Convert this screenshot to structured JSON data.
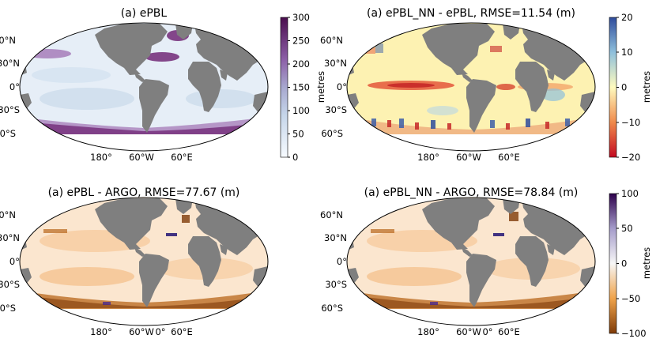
{
  "panels": [
    {
      "title": "(a) ePBL",
      "lat_labels": [
        "60°N",
        "30°N",
        "0°",
        "30°S",
        "60°S"
      ],
      "lon_labels": [
        "180°",
        "60°W",
        "60°E"
      ],
      "field": "sequential_purple"
    },
    {
      "title": "(a) ePBL_NN - ePBL, RMSE=11.54 (m)",
      "lat_labels": [
        "60°N",
        "30°N",
        "0°",
        "30°S",
        "60°S"
      ],
      "lon_labels": [
        "180°",
        "60°W",
        "60°E"
      ],
      "field": "diverging_rdylbu"
    },
    {
      "title": "(a) ePBL - ARGO, RMSE=77.67 (m)",
      "lat_labels": [
        "60°N",
        "30°N",
        "0°",
        "30°S",
        "60°S"
      ],
      "lon_labels": [
        "180°",
        "60°W",
        "0°",
        "60°E"
      ],
      "field": "diverging_puor"
    },
    {
      "title": "(a) ePBL_NN - ARGO, RMSE=78.84 (m)",
      "lat_labels": [
        "60°N",
        "30°N",
        "0°",
        "30°S",
        "60°S"
      ],
      "lon_labels": [
        "180°",
        "60°W",
        "0°",
        "60°E"
      ],
      "field": "diverging_puor"
    }
  ],
  "colorbars": [
    {
      "label": "metres",
      "ticks": [
        "300",
        "250",
        "200",
        "150",
        "100",
        "50",
        "0"
      ],
      "range": [
        0,
        300
      ],
      "colormap": "white-blue-purple"
    },
    {
      "label": "metres",
      "ticks": [
        "20",
        "10",
        "0",
        "−10",
        "−20"
      ],
      "range": [
        -20,
        20
      ],
      "colormap": "red-yellow-blue"
    },
    {
      "label": "metres",
      "ticks": [
        "100",
        "50",
        "0",
        "−50",
        "−100"
      ],
      "range": [
        -100,
        100
      ],
      "colormap": "orange-white-purple"
    }
  ],
  "colors": {
    "land": "#7f7f7f",
    "ocean_low": "#dde8f3",
    "purple": "#6a1b6e",
    "red": "#c62828",
    "yellow": "#fff6b8",
    "orange": "#e8a55a",
    "brown": "#8a4a0e",
    "navy": "#2d1e78"
  }
}
